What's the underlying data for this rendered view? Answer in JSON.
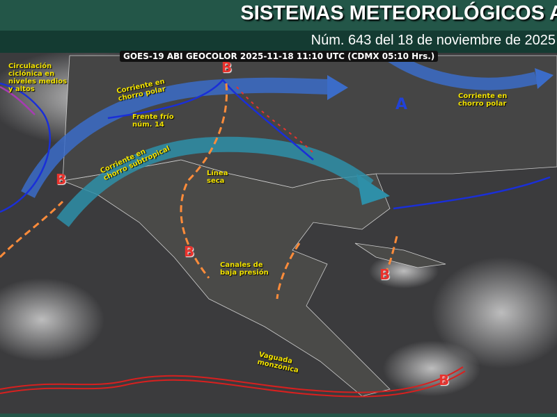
{
  "header": {
    "title": "SISTEMAS METEOROLÓGICOS A",
    "subtitle": "Núm. 643 del 18 de noviembre de 2025"
  },
  "image_stamp": "GOES-19 ABI GEOCOLOR 2025-11-18 11:10 UTC (CDMX  05:10 Hrs.)",
  "labels": {
    "circulacion": "Circulación ciclónica en niveles medios y altos",
    "chorro_polar_w": "Corriente en chorro polar",
    "frente": "Frente frío núm. 14",
    "subtropical": "Corriente en chorro subtropical",
    "linea_seca": "Línea seca",
    "canales": "Canales de baja presión",
    "chorro_polar_e": "Corriente en chorro polar",
    "vaguada": "Vaguada monzónica"
  },
  "pressure": {
    "low": "B",
    "high": "A"
  },
  "colors": {
    "header": "#235648",
    "subheader": "#143b32",
    "label": "#f2e200",
    "low": "#e8322d",
    "high": "#2142d8",
    "jet_polar": "#3b6cc8",
    "jet_subtropical": "#2e8fa8",
    "cold_front": "#1a2fd8",
    "trough": "#ff8c3a",
    "monsoon": "#d8201f"
  }
}
